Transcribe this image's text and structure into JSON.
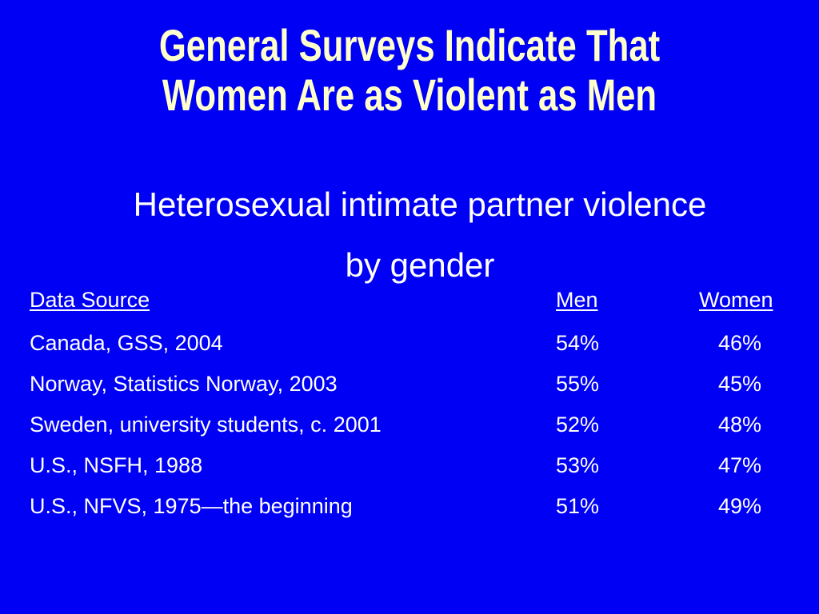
{
  "slide": {
    "title_line1": "General Surveys Indicate That",
    "title_line2": "Women Are as Violent as Men",
    "subtitle_line1": "Heterosexual intimate partner violence",
    "subtitle_line2": "by gender"
  },
  "colors": {
    "background": "#0000f4",
    "title": "#ffffcc",
    "text": "#ffffff"
  },
  "table": {
    "headers": {
      "source": "Data Source",
      "men": "Men",
      "women": "Women"
    },
    "rows": [
      {
        "source": "Canada, GSS, 2004",
        "men": "54%",
        "women": "46%"
      },
      {
        "source": "Norway, Statistics Norway, 2003",
        "men": "55%",
        "women": "45%"
      },
      {
        "source": "Sweden, university students, c. 2001",
        "men": "52%",
        "women": "48%"
      },
      {
        "source": "U.S., NSFH, 1988",
        "men": "53%",
        "women": "47%"
      },
      {
        "source": "U.S., NFVS, 1975—the beginning",
        "men": "51%",
        "women": "49%"
      }
    ]
  }
}
